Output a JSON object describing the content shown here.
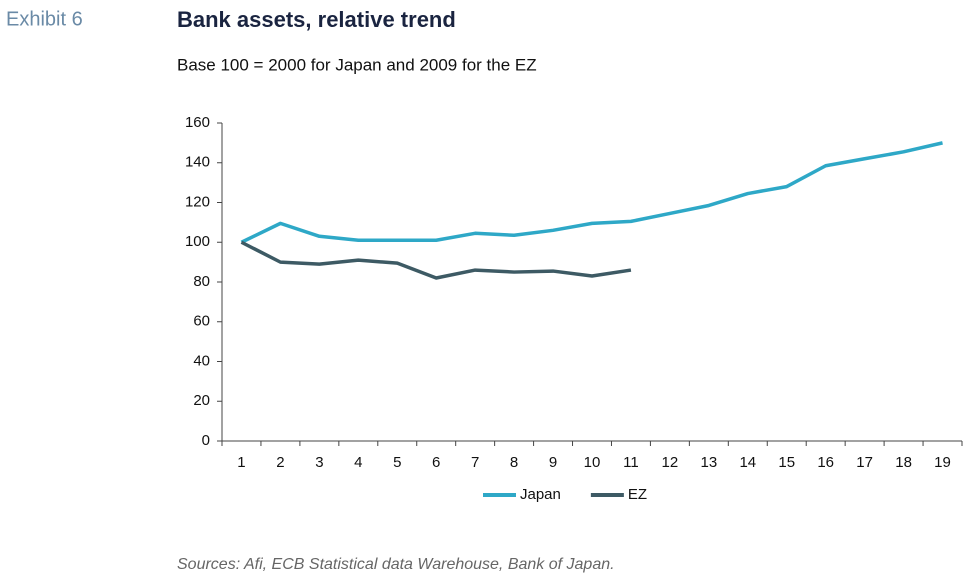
{
  "exhibit": "Exhibit 6",
  "chart_data": {
    "type": "line",
    "title": "Bank assets, relative trend",
    "subtitle": "Base 100 = 2000 for Japan and 2009 for the EZ",
    "categories": [
      1,
      2,
      3,
      4,
      5,
      6,
      7,
      8,
      9,
      10,
      11,
      12,
      13,
      14,
      15,
      16,
      17,
      18,
      19
    ],
    "series": [
      {
        "name": "Japan",
        "color": "#2ea8c7",
        "values": [
          100,
          109.5,
          103,
          101,
          101,
          101,
          104.5,
          103.5,
          106,
          109.5,
          110.5,
          114.5,
          118.5,
          124.5,
          128,
          138.5,
          142,
          145.5,
          150
        ]
      },
      {
        "name": "EZ",
        "color": "#3d5a64",
        "values": [
          100,
          90,
          89,
          91,
          89.5,
          82,
          86,
          85,
          85.5,
          83,
          86,
          null,
          null,
          null,
          null,
          null,
          null,
          null,
          null
        ]
      }
    ],
    "ylim": [
      0,
      160
    ],
    "yticks": [
      0,
      20,
      40,
      60,
      80,
      100,
      120,
      140,
      160
    ],
    "grid": false,
    "legend": "bottom",
    "source": "Sources: Afi, ECB Statistical data Warehouse, Bank of Japan."
  }
}
